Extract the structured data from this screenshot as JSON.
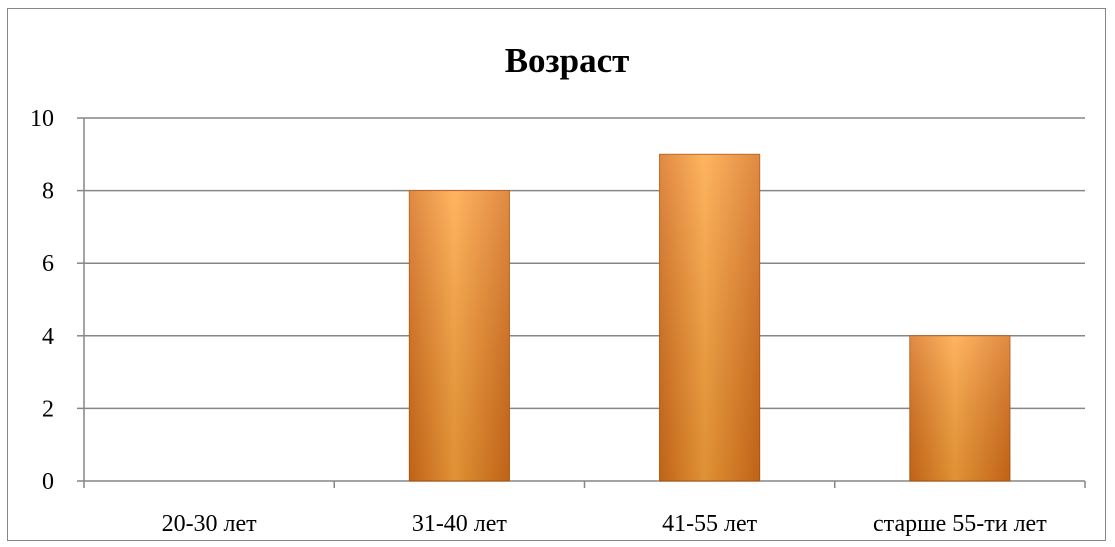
{
  "chart_data": {
    "type": "bar",
    "title": "Возраст",
    "categories": [
      "20-30 лет",
      "31-40 лет",
      "41-55 лет",
      "старше 55-ти лет"
    ],
    "values": [
      0,
      8,
      9,
      4
    ],
    "xlabel": "",
    "ylabel": "",
    "ylim": [
      0,
      10
    ],
    "yticks": [
      0,
      2,
      4,
      6,
      8,
      10
    ],
    "grid": true,
    "legend": "none",
    "colors": {
      "bar_light": "#FFA53D",
      "bar_dark": "#D9701A",
      "bar_edge": "#B85A10",
      "grid": "#868686",
      "frame": "#868686"
    }
  }
}
